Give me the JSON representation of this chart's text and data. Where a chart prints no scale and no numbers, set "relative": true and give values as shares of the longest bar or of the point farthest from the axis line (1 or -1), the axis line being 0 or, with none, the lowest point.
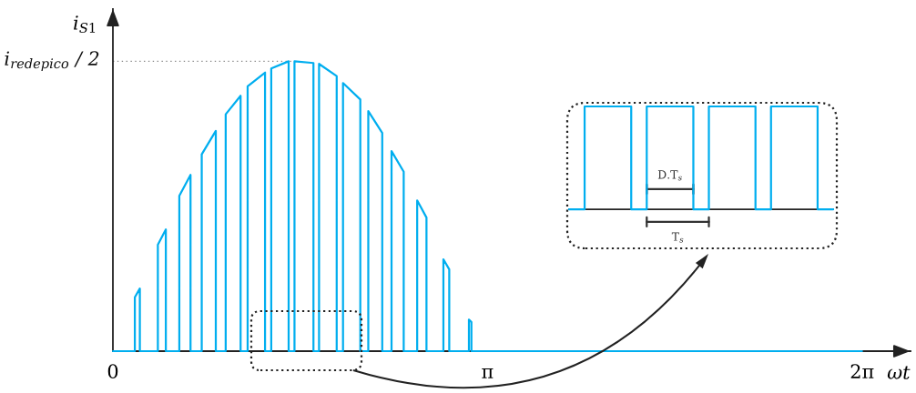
{
  "chart_data": [
    {
      "type": "line",
      "relative": true,
      "x": [
        0,
        0.184,
        0.184,
        0.226,
        0.226,
        0.377,
        0.377,
        0.444,
        0.444,
        0.557,
        0.557,
        0.651,
        0.651,
        0.745,
        0.745,
        0.863,
        0.863,
        0.946,
        0.946,
        1.071,
        1.071,
        1.13,
        1.13,
        1.276,
        1.276,
        1.328,
        1.328,
        1.474,
        1.474,
        1.523,
        1.523,
        1.682,
        1.682,
        1.729,
        1.729,
        1.877,
        1.877,
        1.93,
        1.93,
        2.075,
        2.075,
        2.142,
        2.142,
        2.259,
        2.259,
        2.337,
        2.337,
        2.439,
        2.439,
        2.552,
        2.552,
        2.63,
        2.63,
        2.772,
        2.772,
        2.821,
        2.821,
        2.986,
        2.986,
        3.007,
        3.007,
        6.283
      ],
      "values": [
        0,
        0,
        0.186,
        0.216,
        0,
        0,
        0.367,
        0.42,
        0,
        0,
        0.536,
        0.608,
        0,
        0,
        0.679,
        0.76,
        0,
        0,
        0.817,
        0.881,
        0,
        0,
        0.914,
        0.961,
        0,
        0,
        0.975,
        1.0,
        0,
        0,
        1.0,
        0.994,
        0,
        0,
        0.991,
        0.949,
        0,
        0,
        0.925,
        0.868,
        0,
        0,
        0.828,
        0.753,
        0,
        0,
        0.69,
        0.619,
        0,
        0,
        0.52,
        0.461,
        0,
        0,
        0.317,
        0.282,
        0,
        0,
        0.109,
        0.1,
        0,
        0
      ],
      "color": "#00aeef",
      "xlim": [
        0,
        6.69
      ],
      "xticks": [
        0,
        {
          "value": 3.1416,
          "label": "π"
        },
        {
          "value": 6.2832,
          "label": "2π"
        }
      ],
      "xlabel": "ωt",
      "ylabel": "i$_{S1}$",
      "ref_lines": [
        {
          "axis": "y",
          "value": 1,
          "label": "i$_{redepico}$ / 2",
          "line_style": "dotted",
          "color": "#888888"
        }
      ]
    },
    {
      "type": "step",
      "relative": true,
      "categories": [
        null,
        null,
        null,
        null,
        null,
        null,
        null,
        null,
        null,
        null,
        null,
        null,
        null,
        null,
        null,
        null,
        null,
        null
      ],
      "values": [
        0,
        1,
        1,
        1,
        0,
        1,
        1,
        1,
        0,
        1,
        1,
        1,
        0,
        1,
        1,
        1,
        0,
        0
      ],
      "color": "#00aeef",
      "annotations": [
        "D.T$_{s}$",
        "T$_{s}$"
      ]
    }
  ]
}
